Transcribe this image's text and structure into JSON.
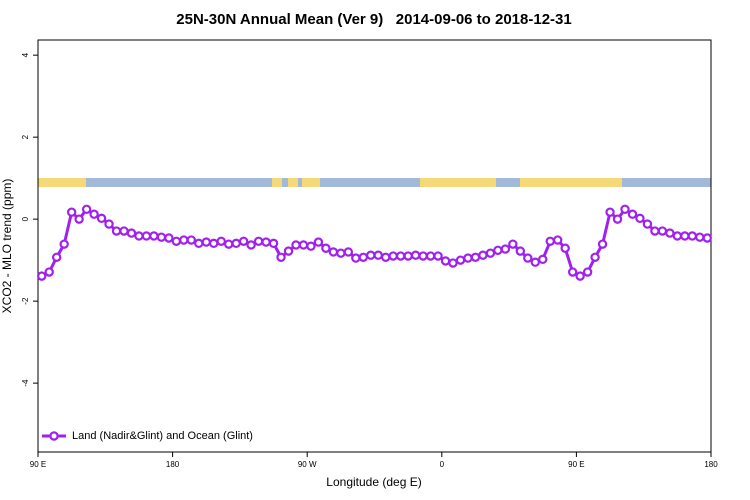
{
  "chart_data": {
    "type": "line",
    "title": "25N-30N Annual Mean (Ver 9)   2014-09-06 to 2018-12-31",
    "xlabel": "Longitude (deg E)",
    "ylabel": "XCO2 - MLO trend (ppm)",
    "xlim": [
      90,
      540
    ],
    "ylim": [
      -5.68,
      4.37
    ],
    "xticks": [
      {
        "value": 90,
        "label": "90 E"
      },
      {
        "value": 180,
        "label": "180"
      },
      {
        "value": 270,
        "label": "90 W"
      },
      {
        "value": 360,
        "label": "0"
      },
      {
        "value": 450,
        "label": "90 E"
      },
      {
        "value": 540,
        "label": "180"
      }
    ],
    "yticks": [
      4,
      2,
      0,
      -2,
      -4
    ],
    "legend": "bottom-left",
    "x": [
      92.5,
      97.5,
      102.5,
      107.5,
      112.5,
      117.5,
      122.5,
      127.5,
      132.5,
      137.5,
      142.5,
      147.5,
      152.5,
      157.5,
      162.5,
      167.5,
      172.5,
      177.5,
      182.5,
      187.5,
      192.5,
      197.5,
      202.5,
      207.5,
      212.5,
      217.5,
      222.5,
      227.5,
      232.5,
      237.5,
      242.5,
      247.5,
      252.5,
      257.5,
      262.5,
      267.5,
      272.5,
      277.5,
      282.5,
      287.5,
      292.5,
      297.5,
      302.5,
      307.5,
      312.5,
      317.5,
      322.5,
      327.5,
      332.5,
      337.5,
      342.5,
      347.5,
      352.5,
      357.5,
      362.5,
      367.5,
      372.5,
      377.5,
      382.5,
      387.5,
      392.5,
      397.5,
      402.5,
      407.5,
      412.5,
      417.5,
      422.5,
      427.5,
      432.5,
      437.5,
      442.5,
      447.5,
      452.5,
      457.5,
      462.5,
      467.5,
      472.5,
      477.5,
      482.5,
      487.5,
      492.5,
      497.5,
      502.5,
      507.5,
      512.5,
      517.5,
      522.5,
      527.5,
      532.5,
      537.5
    ],
    "series": [
      {
        "name": "Land (Nadir&Glint) and Ocean (Glint)",
        "color": "#a020f0",
        "values": [
          -1.39,
          -1.29,
          -0.93,
          -0.61,
          0.17,
          0,
          0.24,
          0.12,
          0.02,
          -0.12,
          -0.29,
          -0.29,
          -0.34,
          -0.41,
          -0.41,
          -0.41,
          -0.44,
          -0.46,
          -0.54,
          -0.51,
          -0.51,
          -0.59,
          -0.56,
          -0.59,
          -0.54,
          -0.61,
          -0.59,
          -0.54,
          -0.63,
          -0.54,
          -0.56,
          -0.59,
          -0.93,
          -0.78,
          -0.63,
          -0.63,
          -0.66,
          -0.56,
          -0.71,
          -0.8,
          -0.83,
          -0.8,
          -0.95,
          -0.93,
          -0.88,
          -0.88,
          -0.93,
          -0.9,
          -0.9,
          -0.9,
          -0.88,
          -0.9,
          -0.9,
          -0.9,
          -1.02,
          -1.07,
          -1,
          -0.95,
          -0.93,
          -0.88,
          -0.83,
          -0.76,
          -0.73,
          -0.61,
          -0.78,
          -0.95,
          -1.05,
          -0.98,
          -0.54,
          -0.51,
          -0.71,
          -1.29,
          -1.39,
          -1.29,
          -0.93,
          -0.61,
          0.17,
          0,
          0.24,
          0.12,
          0.02,
          -0.12,
          -0.29,
          -0.29,
          -0.34,
          -0.41,
          -0.41,
          -0.41,
          -0.44,
          -0.46
        ]
      }
    ]
  }
}
